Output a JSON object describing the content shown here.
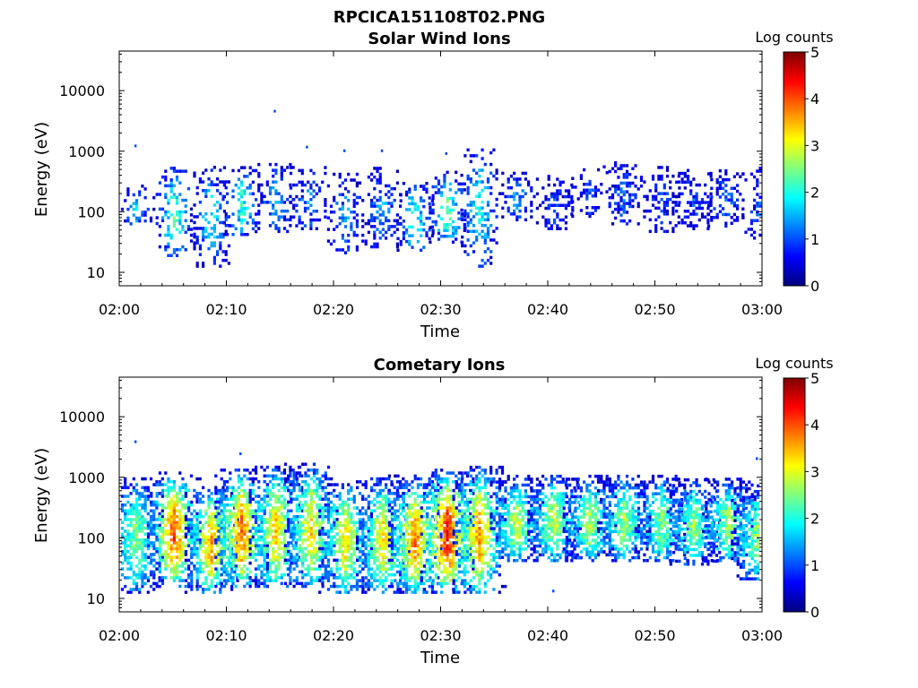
{
  "figure_title": "RPCICA151108T02.PNG",
  "colorbar": {
    "title": "Log counts",
    "min": 0,
    "max": 5,
    "ticks": [
      "0",
      "1",
      "2",
      "3",
      "4",
      "5"
    ],
    "colormap": "jet",
    "jet_stops": [
      "#00007f",
      "#0000ff",
      "#007fff",
      "#00ffff",
      "#7fff7f",
      "#ffff00",
      "#ff7f00",
      "#ff0000",
      "#7f0000"
    ]
  },
  "chart_data": [
    {
      "type": "heatmap",
      "title": "Solar Wind Ions",
      "xlabel": "Time",
      "ylabel": "Energy (eV)",
      "xlim": [
        "02:00",
        "03:00"
      ],
      "x_ticks": [
        "02:00",
        "02:10",
        "02:20",
        "02:30",
        "02:40",
        "02:50",
        "03:00"
      ],
      "ylim": [
        6,
        45000
      ],
      "y_scale": "log",
      "y_ticks": [
        "10",
        "100",
        "1000",
        "10000"
      ],
      "grid": false,
      "bursts": [
        {
          "t": "02:01.5",
          "emin": 60,
          "emax": 260,
          "peak": 1.6,
          "stray_high": 1200
        },
        {
          "t": "02:05.0",
          "emin": 18,
          "emax": 550,
          "peak": 2.3
        },
        {
          "t": "02:08.5",
          "emin": 12,
          "emax": 520,
          "peak": 1.9
        },
        {
          "t": "02:11.3",
          "emin": 40,
          "emax": 520,
          "peak": 2.1
        },
        {
          "t": "02:14.5",
          "emin": 45,
          "emax": 600,
          "peak": 1.5,
          "stray_high": 4500
        },
        {
          "t": "02:17.5",
          "emin": 50,
          "emax": 550,
          "peak": 1.3,
          "stray_high": 1150
        },
        {
          "t": "02:21.0",
          "emin": 20,
          "emax": 400,
          "peak": 1.4,
          "stray_high": 1000
        },
        {
          "t": "02:24.5",
          "emin": 25,
          "emax": 500,
          "peak": 1.4,
          "stray_high": 1000
        },
        {
          "t": "02:27.5",
          "emin": 22,
          "emax": 300,
          "peak": 2.1
        },
        {
          "t": "02:30.5",
          "emin": 30,
          "emax": 450,
          "peak": 2.4,
          "stray_high": 900
        },
        {
          "t": "02:33.5",
          "emin": 12,
          "emax": 1100,
          "peak": 2.0
        },
        {
          "t": "02:37.0",
          "emin": 70,
          "emax": 450,
          "peak": 1.4
        },
        {
          "t": "02:40.5",
          "emin": 50,
          "emax": 400,
          "peak": 0.9
        },
        {
          "t": "02:43.8",
          "emin": 80,
          "emax": 550,
          "peak": 0.9
        },
        {
          "t": "02:47.0",
          "emin": 60,
          "emax": 650,
          "peak": 1.1
        },
        {
          "t": "02:50.5",
          "emin": 45,
          "emax": 550,
          "peak": 0.9
        },
        {
          "t": "02:53.5",
          "emin": 50,
          "emax": 500,
          "peak": 1.0
        },
        {
          "t": "02:56.5",
          "emin": 55,
          "emax": 450,
          "peak": 1.2
        },
        {
          "t": "02:59.7",
          "emin": 35,
          "emax": 550,
          "peak": 1.0
        }
      ]
    },
    {
      "type": "heatmap",
      "title": "Cometary Ions",
      "xlabel": "Time",
      "ylabel": "Energy (eV)",
      "xlim": [
        "02:00",
        "03:00"
      ],
      "x_ticks": [
        "02:00",
        "02:10",
        "02:20",
        "02:30",
        "02:40",
        "02:50",
        "03:00"
      ],
      "ylim": [
        6,
        45000
      ],
      "y_scale": "log",
      "y_ticks": [
        "10",
        "100",
        "1000",
        "10000"
      ],
      "grid": false,
      "bursts": [
        {
          "t": "02:01.5",
          "emin": 12,
          "emax": 900,
          "peak": 2.6,
          "stray_high": 3800
        },
        {
          "t": "02:05.0",
          "emin": 15,
          "emax": 1200,
          "peak": 4.0
        },
        {
          "t": "02:08.5",
          "emin": 12,
          "emax": 700,
          "peak": 3.6
        },
        {
          "t": "02:11.3",
          "emin": 15,
          "emax": 1300,
          "peak": 3.9,
          "stray_high": 2400
        },
        {
          "t": "02:14.5",
          "emin": 15,
          "emax": 1400,
          "peak": 3.4
        },
        {
          "t": "02:17.8",
          "emin": 15,
          "emax": 1600,
          "peak": 3.3
        },
        {
          "t": "02:21.0",
          "emin": 12,
          "emax": 800,
          "peak": 3.3
        },
        {
          "t": "02:24.5",
          "emin": 12,
          "emax": 900,
          "peak": 3.3
        },
        {
          "t": "02:27.5",
          "emin": 12,
          "emax": 1000,
          "peak": 3.8
        },
        {
          "t": "02:30.5",
          "emin": 12,
          "emax": 1300,
          "peak": 4.3
        },
        {
          "t": "02:33.5",
          "emin": 12,
          "emax": 1400,
          "peak": 3.7
        },
        {
          "t": "02:37.0",
          "emin": 40,
          "emax": 1000,
          "peak": 2.9
        },
        {
          "t": "02:40.5",
          "emin": 40,
          "emax": 1100,
          "peak": 2.9,
          "stray_low": 13
        },
        {
          "t": "02:43.8",
          "emin": 40,
          "emax": 1000,
          "peak": 2.8
        },
        {
          "t": "02:47.0",
          "emin": 40,
          "emax": 1050,
          "peak": 2.7
        },
        {
          "t": "02:50.5",
          "emin": 40,
          "emax": 1000,
          "peak": 2.6
        },
        {
          "t": "02:53.5",
          "emin": 35,
          "emax": 900,
          "peak": 2.6
        },
        {
          "t": "02:56.8",
          "emin": 40,
          "emax": 900,
          "peak": 2.8
        },
        {
          "t": "02:59.5",
          "emin": 20,
          "emax": 700,
          "peak": 2.6,
          "stray_high": 2000
        }
      ]
    }
  ]
}
